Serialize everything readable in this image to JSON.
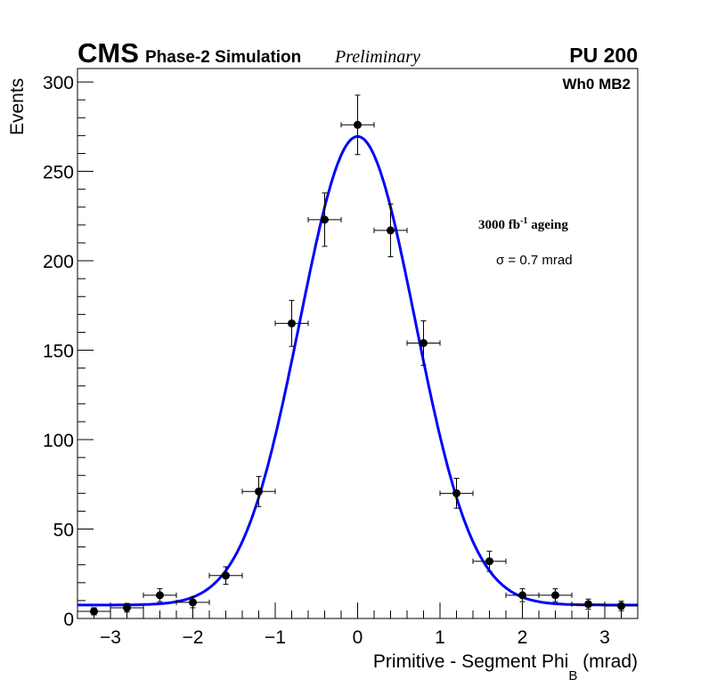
{
  "header": {
    "experiment": "CMS",
    "subtitle": "Phase-2 Simulation",
    "status": "Preliminary",
    "pileup": "PU 200"
  },
  "annotations": {
    "chamber": "Wh0 MB2",
    "lumi_main": "3000 fb",
    "lumi_exp": "-1",
    "lumi_suffix": " ageing",
    "sigma": "σ = 0.7 mrad"
  },
  "chart_data": {
    "type": "scatter",
    "title": "",
    "xlabel_main": "Primitive - Segment Phi",
    "xlabel_sub": "B",
    "xlabel_unit": " (mrad)",
    "ylabel": "Events",
    "xlim": [
      -3.4,
      3.4
    ],
    "ylim": [
      0,
      307.5
    ],
    "xticks": [
      -3,
      -2,
      -1,
      0,
      1,
      2,
      3
    ],
    "xtick_labels": [
      "−3",
      "−2",
      "−1",
      "0",
      "1",
      "2",
      "3"
    ],
    "yticks": [
      0,
      50,
      100,
      150,
      200,
      250,
      300
    ],
    "ytick_labels": [
      "0",
      "50",
      "100",
      "150",
      "200",
      "250",
      "300"
    ],
    "grid": false,
    "points": {
      "name": "data",
      "x": [
        -3.2,
        -2.8,
        -2.4,
        -2.0,
        -1.6,
        -1.2,
        -0.8,
        -0.4,
        0.0,
        0.4,
        0.8,
        1.2,
        1.6,
        2.0,
        2.4,
        2.8,
        3.2
      ],
      "y": [
        4,
        6,
        13,
        9,
        24,
        71,
        165,
        223,
        276,
        217,
        154,
        70,
        32,
        13,
        13,
        8,
        7
      ],
      "xerr": 0.2,
      "yerr": "sqrt"
    },
    "fit": {
      "name": "gaussian + constant",
      "amplitude": 262,
      "mean": 0.0,
      "sigma": 0.7,
      "constant": 7.5
    },
    "colors": {
      "points": "#000000",
      "fit": "#0000ff"
    }
  }
}
